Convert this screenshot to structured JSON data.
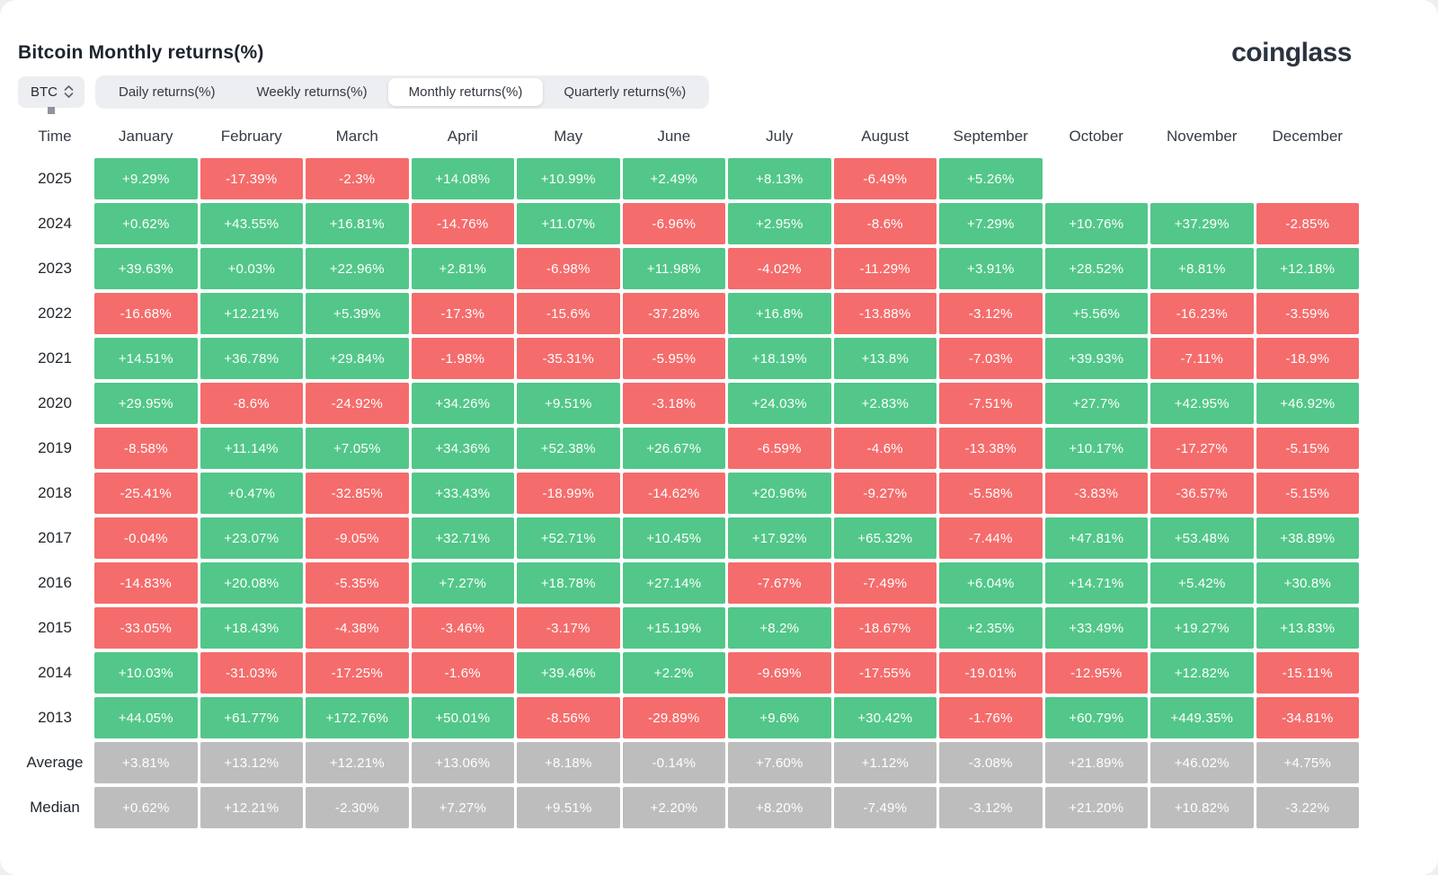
{
  "title": "Bitcoin Monthly returns(%)",
  "logo_text": "coinglass",
  "coin_select": {
    "value": "BTC"
  },
  "tabs": {
    "items": [
      {
        "label": "Daily returns(%)",
        "active": false
      },
      {
        "label": "Weekly returns(%)",
        "active": false
      },
      {
        "label": "Monthly returns(%)",
        "active": true
      },
      {
        "label": "Quarterly returns(%)",
        "active": false
      }
    ]
  },
  "colors": {
    "positive": "#52C789",
    "negative": "#F56C6C",
    "summary": "#BDBDBD"
  },
  "chart_data": {
    "type": "heatmap",
    "title": "Bitcoin Monthly returns(%)",
    "unit": "percent",
    "columns": [
      "Time",
      "January",
      "February",
      "March",
      "April",
      "May",
      "June",
      "July",
      "August",
      "September",
      "October",
      "November",
      "December"
    ],
    "rows": [
      {
        "label": "2025",
        "type": "year",
        "values": [
          "+9.29%",
          "-17.39%",
          "-2.3%",
          "+14.08%",
          "+10.99%",
          "+2.49%",
          "+8.13%",
          "-6.49%",
          "+5.26%",
          "",
          "",
          ""
        ]
      },
      {
        "label": "2024",
        "type": "year",
        "values": [
          "+0.62%",
          "+43.55%",
          "+16.81%",
          "-14.76%",
          "+11.07%",
          "-6.96%",
          "+2.95%",
          "-8.6%",
          "+7.29%",
          "+10.76%",
          "+37.29%",
          "-2.85%"
        ]
      },
      {
        "label": "2023",
        "type": "year",
        "values": [
          "+39.63%",
          "+0.03%",
          "+22.96%",
          "+2.81%",
          "-6.98%",
          "+11.98%",
          "-4.02%",
          "-11.29%",
          "+3.91%",
          "+28.52%",
          "+8.81%",
          "+12.18%"
        ]
      },
      {
        "label": "2022",
        "type": "year",
        "values": [
          "-16.68%",
          "+12.21%",
          "+5.39%",
          "-17.3%",
          "-15.6%",
          "-37.28%",
          "+16.8%",
          "-13.88%",
          "-3.12%",
          "+5.56%",
          "-16.23%",
          "-3.59%"
        ]
      },
      {
        "label": "2021",
        "type": "year",
        "values": [
          "+14.51%",
          "+36.78%",
          "+29.84%",
          "-1.98%",
          "-35.31%",
          "-5.95%",
          "+18.19%",
          "+13.8%",
          "-7.03%",
          "+39.93%",
          "-7.11%",
          "-18.9%"
        ]
      },
      {
        "label": "2020",
        "type": "year",
        "values": [
          "+29.95%",
          "-8.6%",
          "-24.92%",
          "+34.26%",
          "+9.51%",
          "-3.18%",
          "+24.03%",
          "+2.83%",
          "-7.51%",
          "+27.7%",
          "+42.95%",
          "+46.92%"
        ]
      },
      {
        "label": "2019",
        "type": "year",
        "values": [
          "-8.58%",
          "+11.14%",
          "+7.05%",
          "+34.36%",
          "+52.38%",
          "+26.67%",
          "-6.59%",
          "-4.6%",
          "-13.38%",
          "+10.17%",
          "-17.27%",
          "-5.15%"
        ]
      },
      {
        "label": "2018",
        "type": "year",
        "values": [
          "-25.41%",
          "+0.47%",
          "-32.85%",
          "+33.43%",
          "-18.99%",
          "-14.62%",
          "+20.96%",
          "-9.27%",
          "-5.58%",
          "-3.83%",
          "-36.57%",
          "-5.15%"
        ]
      },
      {
        "label": "2017",
        "type": "year",
        "values": [
          "-0.04%",
          "+23.07%",
          "-9.05%",
          "+32.71%",
          "+52.71%",
          "+10.45%",
          "+17.92%",
          "+65.32%",
          "-7.44%",
          "+47.81%",
          "+53.48%",
          "+38.89%"
        ]
      },
      {
        "label": "2016",
        "type": "year",
        "values": [
          "-14.83%",
          "+20.08%",
          "-5.35%",
          "+7.27%",
          "+18.78%",
          "+27.14%",
          "-7.67%",
          "-7.49%",
          "+6.04%",
          "+14.71%",
          "+5.42%",
          "+30.8%"
        ]
      },
      {
        "label": "2015",
        "type": "year",
        "values": [
          "-33.05%",
          "+18.43%",
          "-4.38%",
          "-3.46%",
          "-3.17%",
          "+15.19%",
          "+8.2%",
          "-18.67%",
          "+2.35%",
          "+33.49%",
          "+19.27%",
          "+13.83%"
        ]
      },
      {
        "label": "2014",
        "type": "year",
        "values": [
          "+10.03%",
          "-31.03%",
          "-17.25%",
          "-1.6%",
          "+39.46%",
          "+2.2%",
          "-9.69%",
          "-17.55%",
          "-19.01%",
          "-12.95%",
          "+12.82%",
          "-15.11%"
        ]
      },
      {
        "label": "2013",
        "type": "year",
        "values": [
          "+44.05%",
          "+61.77%",
          "+172.76%",
          "+50.01%",
          "-8.56%",
          "-29.89%",
          "+9.6%",
          "+30.42%",
          "-1.76%",
          "+60.79%",
          "+449.35%",
          "-34.81%"
        ]
      },
      {
        "label": "Average",
        "type": "summary",
        "values": [
          "+3.81%",
          "+13.12%",
          "+12.21%",
          "+13.06%",
          "+8.18%",
          "-0.14%",
          "+7.60%",
          "+1.12%",
          "-3.08%",
          "+21.89%",
          "+46.02%",
          "+4.75%"
        ]
      },
      {
        "label": "Median",
        "type": "summary",
        "values": [
          "+0.62%",
          "+12.21%",
          "-2.30%",
          "+7.27%",
          "+9.51%",
          "+2.20%",
          "+8.20%",
          "-7.49%",
          "-3.12%",
          "+21.20%",
          "+10.82%",
          "-3.22%"
        ]
      }
    ]
  }
}
